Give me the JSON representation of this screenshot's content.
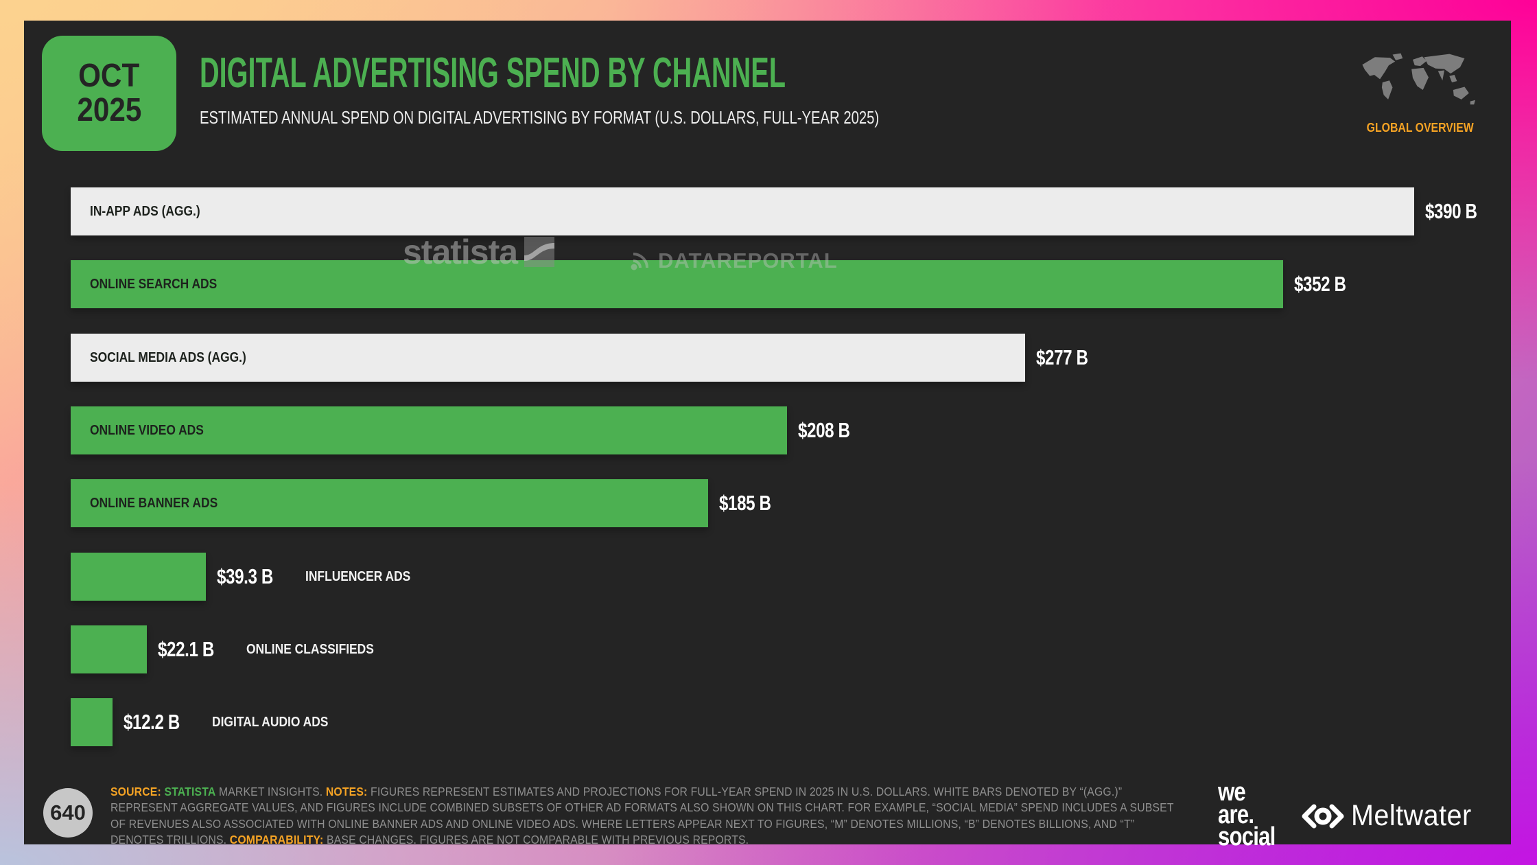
{
  "header": {
    "date_badge": {
      "month": "OCT",
      "year": "2025"
    },
    "title": "DIGITAL ADVERTISING SPEND BY CHANNEL",
    "subtitle": "ESTIMATED ANNUAL SPEND ON DIGITAL ADVERTISING BY FORMAT (U.S. DOLLARS, FULL-YEAR 2025)",
    "scope_label": "GLOBAL OVERVIEW"
  },
  "watermarks": {
    "statista": "statista",
    "datareportal": "DATAREPORTAL"
  },
  "chart_data": {
    "type": "bar",
    "orientation": "horizontal",
    "title": "DIGITAL ADVERTISING SPEND BY CHANNEL",
    "unit": "U.S. dollars (billions), full-year 2025",
    "xlim": [
      0,
      390
    ],
    "grid": false,
    "categories": [
      "IN-APP ADS (AGG.)",
      "ONLINE SEARCH ADS",
      "SOCIAL MEDIA ADS (AGG.)",
      "ONLINE VIDEO ADS",
      "ONLINE BANNER ADS",
      "INFLUENCER ADS",
      "ONLINE CLASSIFIEDS",
      "DIGITAL AUDIO ADS"
    ],
    "values": [
      390,
      352,
      277,
      208,
      185,
      39.3,
      22.1,
      12.2
    ],
    "value_labels": [
      "$390 B",
      "$352 B",
      "$277 B",
      "$208 B",
      "$185 B",
      "$39.3 B",
      "$22.1 B",
      "$12.2 B"
    ],
    "bar_colors": [
      "#ececec",
      "#4cb051",
      "#ececec",
      "#4cb051",
      "#4cb051",
      "#4cb051",
      "#4cb051",
      "#4cb051"
    ],
    "label_placement": [
      "inside",
      "inside",
      "inside",
      "inside",
      "inside",
      "outside",
      "outside",
      "outside"
    ],
    "aggregate_bars": [
      "IN-APP ADS (AGG.)",
      "SOCIAL MEDIA ADS (AGG.)"
    ]
  },
  "footer": {
    "page_number": "640",
    "source_label": "SOURCE:",
    "source_statista": "STATISTA",
    "source_suffix": "MARKET INSIGHTS.",
    "notes_label": "NOTES:",
    "notes_body": "FIGURES REPRESENT ESTIMATES AND PROJECTIONS FOR FULL-YEAR SPEND IN 2025 IN U.S. DOLLARS. WHITE BARS DENOTED BY “(AGG.)” REPRESENT AGGREGATE VALUES, AND FIGURES INCLUDE COMBINED SUBSETS OF OTHER AD FORMATS ALSO SHOWN ON THIS CHART. FOR EXAMPLE, “SOCIAL MEDIA” SPEND INCLUDES A SUBSET OF REVENUES ALSO ASSOCIATED WITH ONLINE BANNER ADS AND ONLINE VIDEO ADS. WHERE LETTERS APPEAR NEXT TO FIGURES, “M” DENOTES MILLIONS, “B” DENOTES BILLIONS, AND “T” DENOTES TRILLIONS.",
    "comparability_label": "COMPARABILITY:",
    "comparability_body": "BASE CHANGES. FIGURES ARE NOT COMPARABLE WITH PREVIOUS REPORTS.",
    "we_are_social_lines": [
      "we",
      "are.",
      "social"
    ],
    "meltwater_label": "Meltwater"
  },
  "colors": {
    "background": "#242424",
    "accent_green": "#4cb051",
    "accent_orange": "#f5a324",
    "bar_white": "#ececec",
    "value_text": "#ffffff",
    "footer_text": "#8f8f8f"
  }
}
